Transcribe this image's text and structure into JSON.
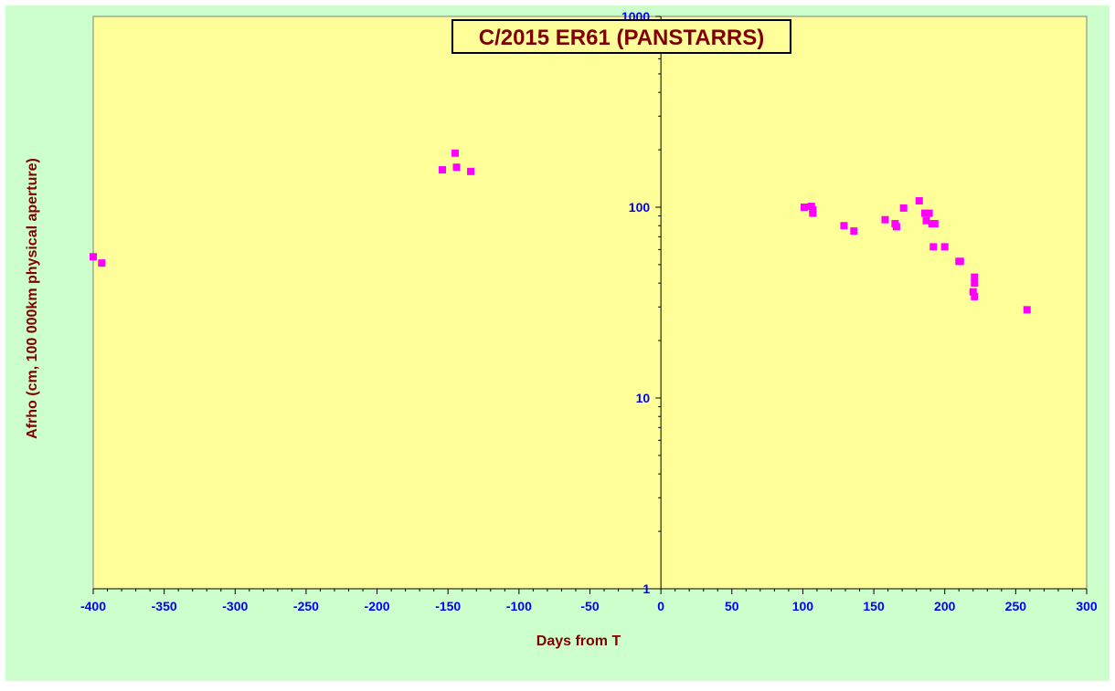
{
  "colors": {
    "outer_background": "#ccffcc",
    "plot_background": "#ffff99",
    "tick_label": "#0000ff",
    "axis_title": "#800000",
    "title_text": "#800000",
    "title_box_border": "#000000",
    "title_box_fill": "#ffff99",
    "marker": "#ff00ff",
    "axis_line": "#000000"
  },
  "chart_data": {
    "type": "scatter",
    "title": "C/2015 ER61 (PANSTARRS)",
    "xlabel": "Days from T",
    "ylabel": "Afrho (cm, 100 000km physical aperture)",
    "xlim": [
      -400,
      300
    ],
    "ylim": [
      1,
      1000
    ],
    "yscale": "log",
    "x_ticks": [
      -400,
      -350,
      -300,
      -250,
      -200,
      -150,
      -100,
      -50,
      0,
      50,
      100,
      150,
      200,
      250,
      300
    ],
    "y_ticks": [
      1,
      10,
      100,
      1000
    ],
    "grid": false,
    "legend": "none",
    "marker": "square",
    "series": [
      {
        "points": [
          {
            "x": -400,
            "y": 55
          },
          {
            "x": -394,
            "y": 51
          },
          {
            "x": -154,
            "y": 157
          },
          {
            "x": -145,
            "y": 192
          },
          {
            "x": -144,
            "y": 162
          },
          {
            "x": -134,
            "y": 154
          },
          {
            "x": 101,
            "y": 100
          },
          {
            "x": 106,
            "y": 101
          },
          {
            "x": 107,
            "y": 97
          },
          {
            "x": 107,
            "y": 93
          },
          {
            "x": 129,
            "y": 80
          },
          {
            "x": 136,
            "y": 75
          },
          {
            "x": 158,
            "y": 86
          },
          {
            "x": 165,
            "y": 82
          },
          {
            "x": 166,
            "y": 79
          },
          {
            "x": 171,
            "y": 99
          },
          {
            "x": 182,
            "y": 108
          },
          {
            "x": 186,
            "y": 93
          },
          {
            "x": 187,
            "y": 85
          },
          {
            "x": 189,
            "y": 93
          },
          {
            "x": 191,
            "y": 82
          },
          {
            "x": 192,
            "y": 62
          },
          {
            "x": 193,
            "y": 82
          },
          {
            "x": 200,
            "y": 62
          },
          {
            "x": 210,
            "y": 52
          },
          {
            "x": 211,
            "y": 52
          },
          {
            "x": 221,
            "y": 43
          },
          {
            "x": 221,
            "y": 40
          },
          {
            "x": 220,
            "y": 36
          },
          {
            "x": 221,
            "y": 34
          },
          {
            "x": 258,
            "y": 29
          }
        ]
      }
    ]
  }
}
